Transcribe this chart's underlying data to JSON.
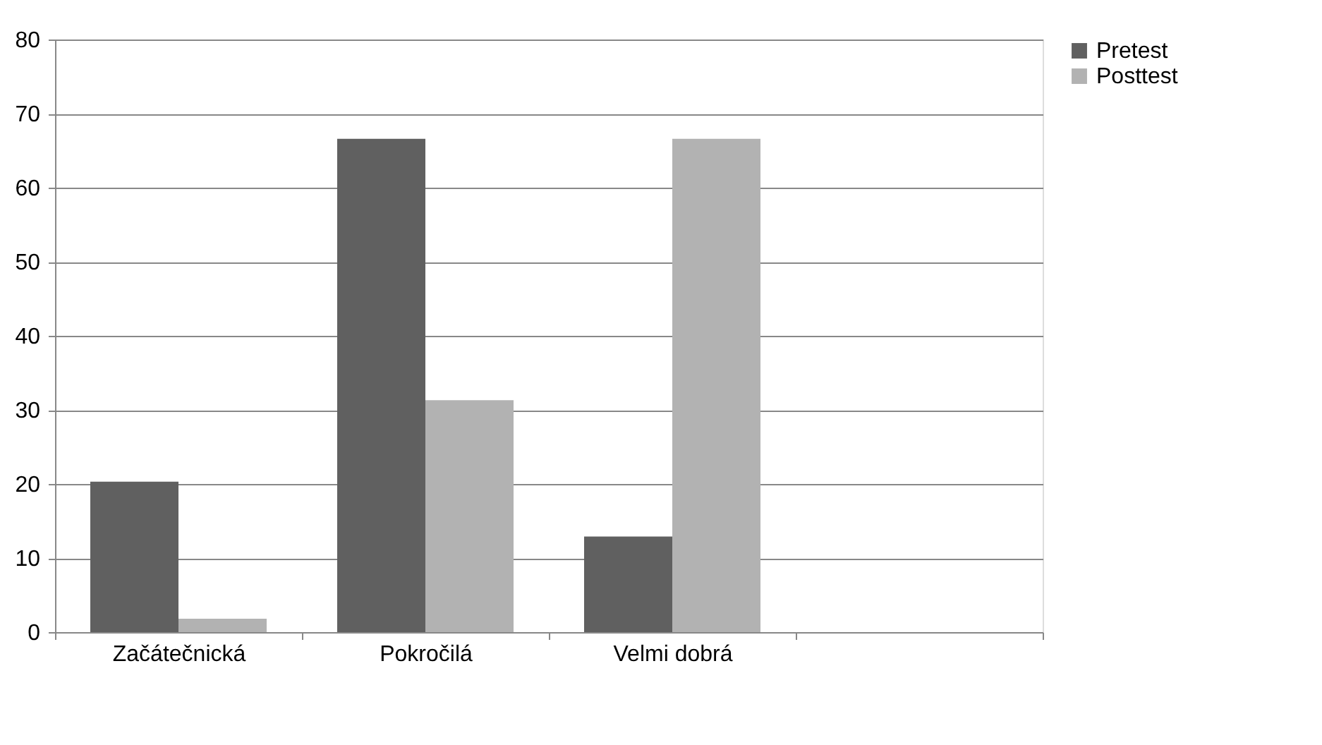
{
  "chart_data": {
    "type": "bar",
    "categories": [
      "Začátečnická",
      "Pokročilá",
      "Velmi dobrá",
      null
    ],
    "series": [
      {
        "name": "Pretest",
        "color": "#606060",
        "values": [
          20.3,
          66.6,
          12.9,
          null
        ]
      },
      {
        "name": "Posttest",
        "color": "#b2b2b2",
        "values": [
          1.8,
          31.3,
          66.6,
          null
        ]
      }
    ],
    "ylim": [
      0,
      80
    ],
    "yticks": [
      0,
      10,
      20,
      30,
      40,
      50,
      60,
      70,
      80
    ],
    "grid": "y",
    "legend": "right"
  }
}
